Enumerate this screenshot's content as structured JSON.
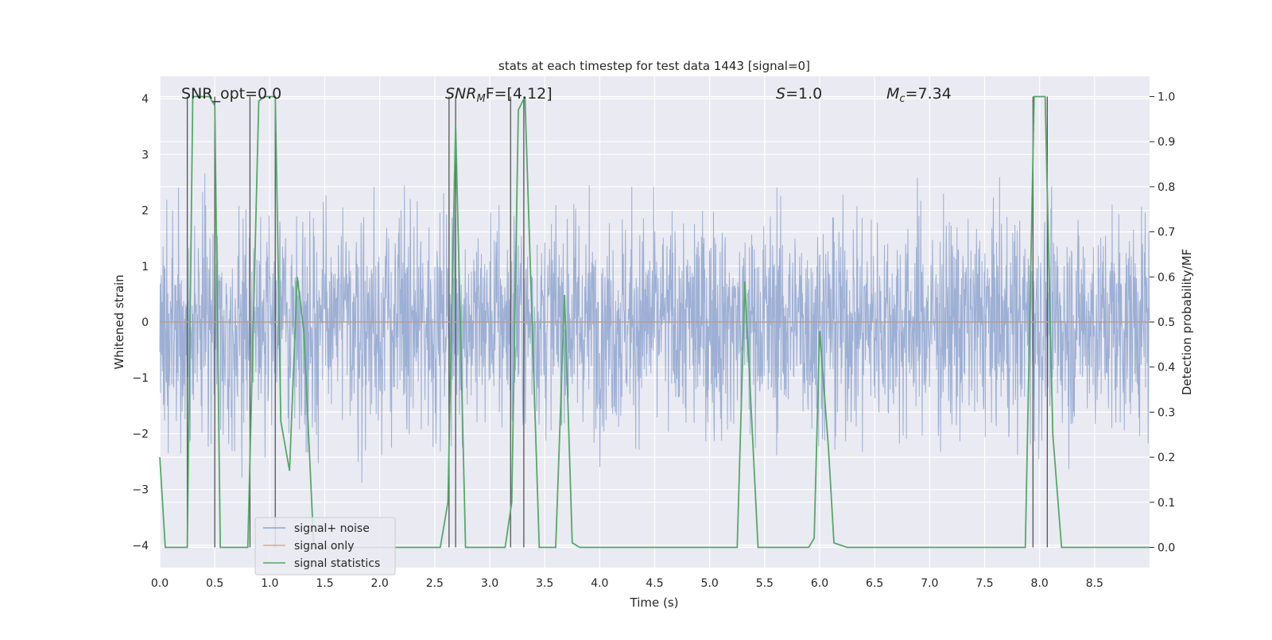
{
  "chart_data": {
    "type": "line",
    "title": "stats at each timestep for test data 1443 [signal=0]",
    "xlabel": "Time (s)",
    "ylabel_left": "Whitened strain",
    "ylabel_right": "Detection probability/MF",
    "xlim": [
      0.0,
      9.0
    ],
    "ylim_left": [
      -4.4,
      4.4
    ],
    "ylim_right": [
      -0.045,
      1.045
    ],
    "x_ticks": [
      0.0,
      0.5,
      1.0,
      1.5,
      2.0,
      2.5,
      3.0,
      3.5,
      4.0,
      4.5,
      5.0,
      5.5,
      6.0,
      6.5,
      7.0,
      7.5,
      8.0,
      8.5
    ],
    "x_tick_labels": [
      "0.0",
      "0.5",
      "1.0",
      "1.5",
      "2.0",
      "2.5",
      "3.0",
      "3.5",
      "4.0",
      "4.5",
      "5.0",
      "5.5",
      "6.0",
      "6.5",
      "7.0",
      "7.5",
      "8.0",
      "8.5"
    ],
    "y_left_ticks": [
      4,
      3,
      2,
      1,
      0,
      -1,
      -2,
      -3,
      -4
    ],
    "y_left_tick_labels": [
      "4",
      "3",
      "2",
      "1",
      "0",
      "−1",
      "−2",
      "−3",
      "−4"
    ],
    "y_right_ticks": [
      1.0,
      0.9,
      0.8,
      0.7,
      0.6,
      0.5,
      0.4,
      0.3,
      0.2,
      0.1,
      0.0
    ],
    "y_right_tick_labels": [
      "1.0",
      "0.9",
      "0.8",
      "0.7",
      "0.6",
      "0.5",
      "0.4",
      "0.3",
      "0.2",
      "0.1",
      "0.0"
    ],
    "grid": true,
    "legend_position": "lower-left",
    "annotations": {
      "snr_opt": "SNR_opt=0.0",
      "snr_mf_main": "SNR",
      "snr_mf_sub": "M",
      "snr_mf_rest": "F=[4.12]",
      "s_label": "S",
      "s_value": "=1.0",
      "mc_main": "M",
      "mc_sub": "c",
      "mc_value": "=7.34"
    },
    "series": [
      {
        "name": "signal+ noise",
        "color": "#8fa5cf",
        "axis": "left",
        "description": "dense whitened noise, amplitude roughly within ±3.5",
        "envelope_seed": 1443,
        "points": 2700
      },
      {
        "name": "signal only",
        "color": "#e8a58a",
        "axis": "left",
        "x": [
          0.0,
          9.0
        ],
        "y": [
          0.0,
          0.0
        ]
      },
      {
        "name": "signal statistics",
        "color": "#55a868",
        "axis": "right",
        "x": [
          0.0,
          0.05,
          0.25,
          0.3,
          0.45,
          0.5,
          0.55,
          0.8,
          0.9,
          0.95,
          1.05,
          1.1,
          1.18,
          1.25,
          1.31,
          1.4,
          2.55,
          2.62,
          2.69,
          2.78,
          3.14,
          3.2,
          3.26,
          3.32,
          3.45,
          3.6,
          3.68,
          3.75,
          3.82,
          5.25,
          5.32,
          5.44,
          5.9,
          5.95,
          6.0,
          6.08,
          6.13,
          6.25,
          7.87,
          7.95,
          8.0,
          8.05,
          8.12,
          8.2,
          9.0
        ],
        "y": [
          0.2,
          0.0,
          0.0,
          1.0,
          1.0,
          0.98,
          0.0,
          0.0,
          0.99,
          1.0,
          1.0,
          0.28,
          0.17,
          0.6,
          0.48,
          0.0,
          0.0,
          0.1,
          0.94,
          0.0,
          0.0,
          0.1,
          0.97,
          1.0,
          0.0,
          0.0,
          0.56,
          0.01,
          0.0,
          0.0,
          0.59,
          0.0,
          0.0,
          0.02,
          0.48,
          0.22,
          0.01,
          0.0,
          0.0,
          1.0,
          1.0,
          1.0,
          0.25,
          0.0,
          0.0
        ]
      }
    ],
    "vertical_markers": [
      0.25,
      0.5,
      0.82,
      1.05,
      2.63,
      2.69,
      3.19,
      3.31,
      7.94,
      8.07
    ],
    "marker_color": "#555555"
  }
}
